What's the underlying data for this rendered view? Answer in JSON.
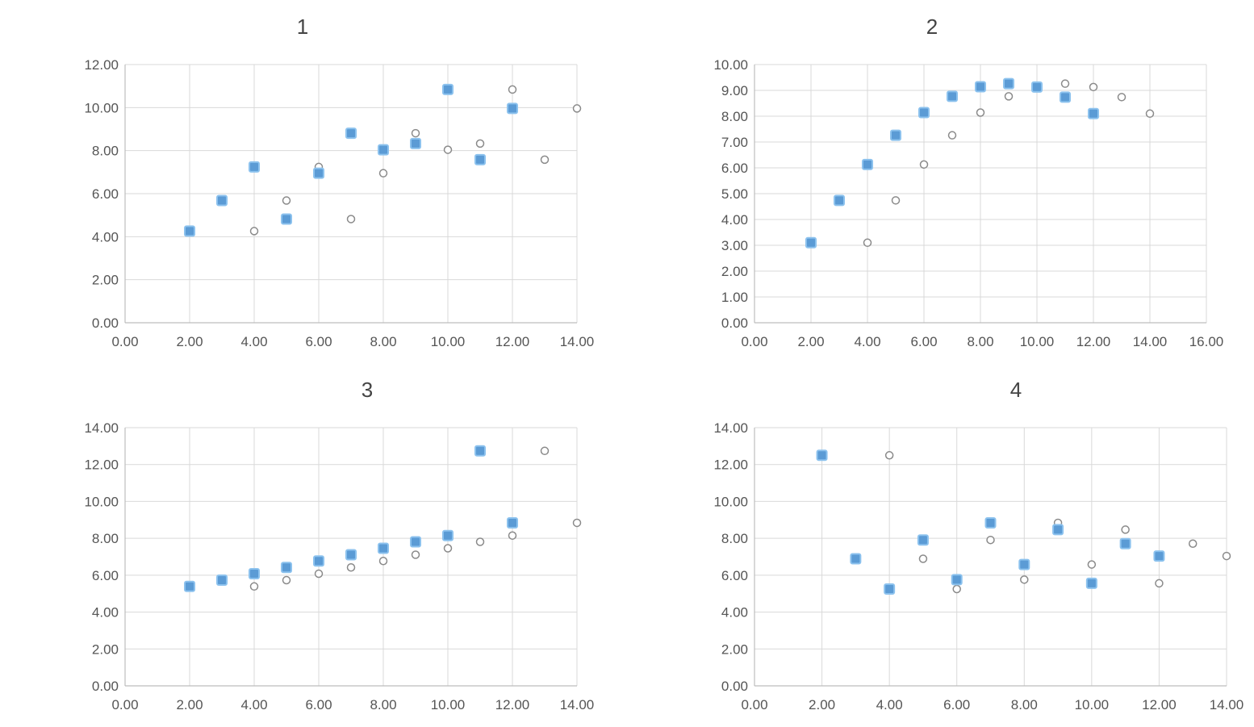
{
  "chart_data": [
    {
      "type": "scatter",
      "title": "1",
      "xlim": [
        0,
        14
      ],
      "ylim": [
        0,
        12
      ],
      "xticks": [
        "0.00",
        "2.00",
        "4.00",
        "6.00",
        "8.00",
        "10.00",
        "12.00",
        "14.00"
      ],
      "yticks": [
        "0.00",
        "2.00",
        "4.00",
        "6.00",
        "8.00",
        "10.00",
        "12.00"
      ],
      "grid": true,
      "series": [
        {
          "color": "#5b9bd5",
          "x": [
            2,
            3,
            4,
            5,
            6,
            7,
            8,
            9,
            10,
            11,
            12
          ],
          "y": [
            4.26,
            5.68,
            7.24,
            4.82,
            6.95,
            8.81,
            8.04,
            8.33,
            10.84,
            7.58,
            9.96
          ]
        },
        {
          "color": "#8a8a8a",
          "x": [
            4,
            5,
            6,
            7,
            8,
            9,
            10,
            11,
            12,
            13,
            14
          ],
          "y": [
            4.26,
            5.68,
            7.24,
            4.82,
            6.95,
            8.81,
            8.04,
            8.33,
            10.84,
            7.58,
            9.96
          ]
        }
      ]
    },
    {
      "type": "scatter",
      "title": "2",
      "xlim": [
        0,
        16
      ],
      "ylim": [
        0,
        10
      ],
      "xticks": [
        "0.00",
        "2.00",
        "4.00",
        "6.00",
        "8.00",
        "10.00",
        "12.00",
        "14.00",
        "16.00"
      ],
      "yticks": [
        "0.00",
        "1.00",
        "2.00",
        "3.00",
        "4.00",
        "5.00",
        "6.00",
        "7.00",
        "8.00",
        "9.00",
        "10.00"
      ],
      "grid": true,
      "series": [
        {
          "color": "#5b9bd5",
          "x": [
            2,
            3,
            4,
            5,
            6,
            7,
            8,
            9,
            10,
            11,
            12
          ],
          "y": [
            3.1,
            4.74,
            6.13,
            7.26,
            8.14,
            8.77,
            9.14,
            9.26,
            9.13,
            8.74,
            8.1
          ]
        },
        {
          "color": "#8a8a8a",
          "x": [
            4,
            5,
            6,
            7,
            8,
            9,
            10,
            11,
            12,
            13,
            14
          ],
          "y": [
            3.1,
            4.74,
            6.13,
            7.26,
            8.14,
            8.77,
            9.14,
            9.26,
            9.13,
            8.74,
            8.1
          ]
        }
      ]
    },
    {
      "type": "scatter",
      "title": "3",
      "xlim": [
        0,
        14
      ],
      "ylim": [
        0,
        14
      ],
      "xticks": [
        "0.00",
        "2.00",
        "4.00",
        "6.00",
        "8.00",
        "10.00",
        "12.00",
        "14.00"
      ],
      "yticks": [
        "0.00",
        "2.00",
        "4.00",
        "6.00",
        "8.00",
        "10.00",
        "12.00",
        "14.00"
      ],
      "grid": true,
      "series": [
        {
          "color": "#5b9bd5",
          "x": [
            2,
            3,
            4,
            5,
            6,
            7,
            8,
            9,
            10,
            11,
            12
          ],
          "y": [
            5.39,
            5.73,
            6.08,
            6.42,
            6.77,
            7.11,
            7.46,
            7.81,
            8.15,
            12.74,
            8.84
          ]
        },
        {
          "color": "#8a8a8a",
          "x": [
            4,
            5,
            6,
            7,
            8,
            9,
            10,
            11,
            12,
            13,
            14
          ],
          "y": [
            5.39,
            5.73,
            6.08,
            6.42,
            6.77,
            7.11,
            7.46,
            7.81,
            8.15,
            12.74,
            8.84
          ]
        }
      ]
    },
    {
      "type": "scatter",
      "title": "4",
      "xlim": [
        0,
        14
      ],
      "ylim": [
        0,
        14
      ],
      "xticks": [
        "0.00",
        "2.00",
        "4.00",
        "6.00",
        "8.00",
        "10.00",
        "12.00",
        "14.00"
      ],
      "yticks": [
        "0.00",
        "2.00",
        "4.00",
        "6.00",
        "8.00",
        "10.00",
        "12.00",
        "14.00"
      ],
      "grid": true,
      "series": [
        {
          "color": "#5b9bd5",
          "x": [
            2,
            3,
            4,
            5,
            6,
            7,
            8,
            9,
            10,
            11,
            12
          ],
          "y": [
            12.5,
            6.89,
            5.25,
            7.91,
            5.76,
            8.84,
            6.58,
            8.47,
            5.56,
            7.71,
            7.04
          ]
        },
        {
          "color": "#8a8a8a",
          "x": [
            4,
            5,
            6,
            7,
            8,
            9,
            10,
            11,
            12,
            13,
            14
          ],
          "y": [
            12.5,
            6.89,
            5.25,
            7.91,
            5.76,
            8.84,
            6.58,
            8.47,
            5.56,
            7.71,
            7.04
          ]
        }
      ]
    }
  ]
}
